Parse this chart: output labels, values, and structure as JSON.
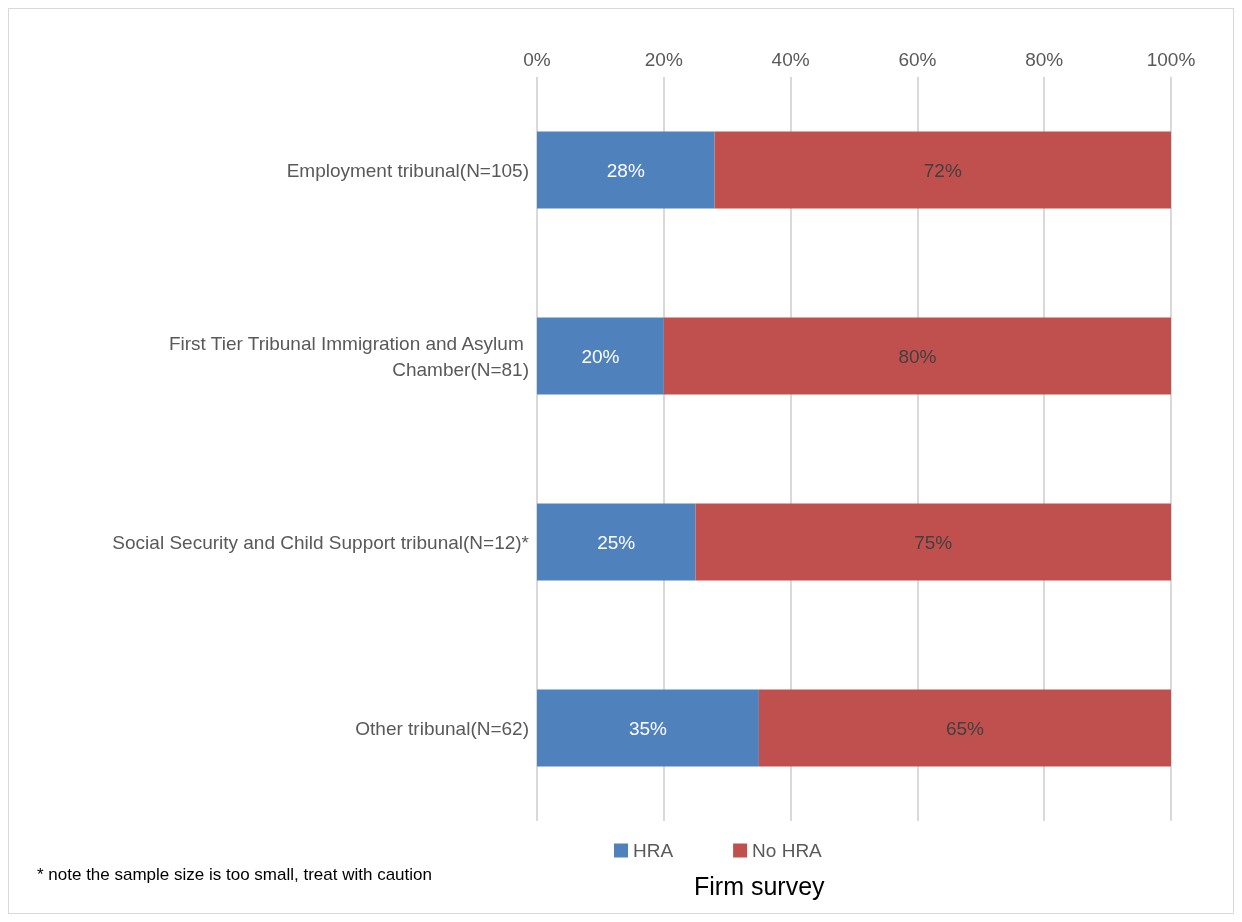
{
  "chart_data": {
    "type": "bar",
    "orientation": "horizontal",
    "stacked": true,
    "title": "Firm survey",
    "categories": [
      "Employment tribunal(N=105)",
      "First Tier Tribunal Immigration and Asylum Chamber(N=81)",
      "Social Security and Child Support tribunal(N=12)*",
      "Other tribunal(N=62)"
    ],
    "series": [
      {
        "name": "HRA",
        "color": "#4f81bd",
        "values": [
          28,
          20,
          25,
          35
        ],
        "value_labels": [
          "28%",
          "20%",
          "25%",
          "35%"
        ]
      },
      {
        "name": "No HRA",
        "color": "#c0504d",
        "values": [
          72,
          80,
          75,
          65
        ],
        "value_labels": [
          "72%",
          "80%",
          "75%",
          "65%"
        ]
      }
    ],
    "xlim": [
      0,
      100
    ],
    "xticks": [
      {
        "value": 0,
        "label": "0%"
      },
      {
        "value": 20,
        "label": "20%"
      },
      {
        "value": 40,
        "label": "40%"
      },
      {
        "value": 60,
        "label": "60%"
      },
      {
        "value": 80,
        "label": "80%"
      },
      {
        "value": 100,
        "label": "100%"
      }
    ],
    "grid": "x",
    "legend": "bottom",
    "annotations": [
      "* note the sample size is too small, treat with caution"
    ]
  }
}
